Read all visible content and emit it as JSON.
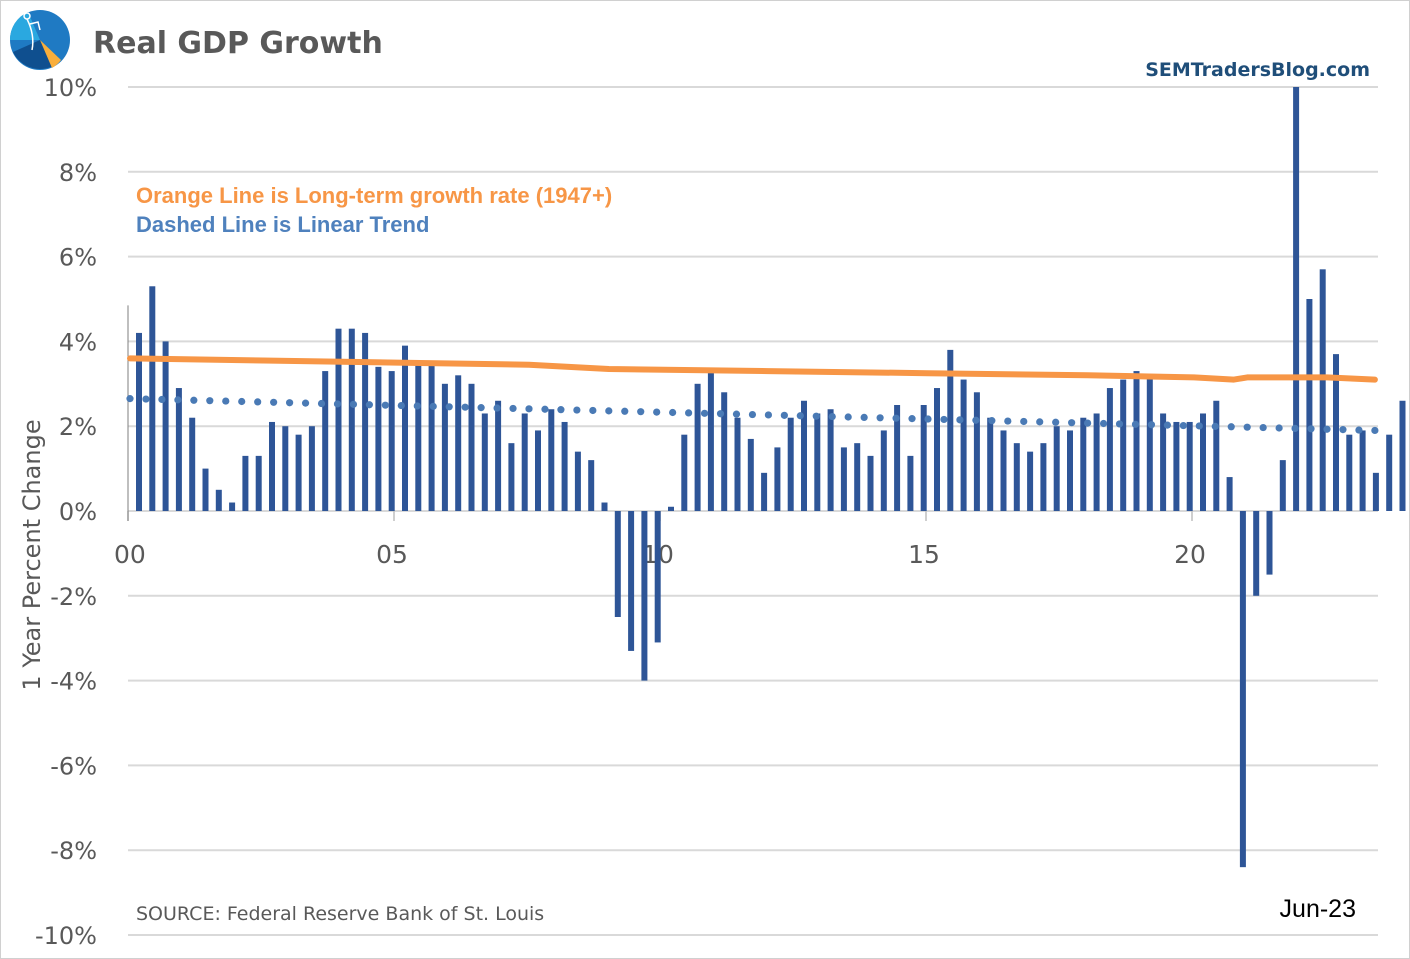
{
  "header": {
    "title": "Real GDP Growth",
    "brand": "SEMTradersBlog.com",
    "logo_icon": "compass-pie-logo-icon"
  },
  "annotations": {
    "orange_note": "Orange Line is Long-term growth rate (1947+)",
    "blue_note": "Dashed Line is Linear Trend",
    "source": "SOURCE:  Federal Reserve Bank of St. Louis",
    "date": "Jun-23"
  },
  "colors": {
    "bar": "#2e5597",
    "long_term_line": "#f79646",
    "trend_dots": "#4a7ab5",
    "grid": "#d9d9d9",
    "title": "#595959",
    "brand": "#1f4e79"
  },
  "chart_data": {
    "type": "bar",
    "title": "Real GDP Growth",
    "xlabel": "",
    "ylabel": "1 Year Percent Change",
    "ylim": [
      -10,
      10
    ],
    "yticks": [
      10,
      8,
      6,
      4,
      2,
      0,
      -2,
      -4,
      -6,
      -8,
      -10
    ],
    "ytick_labels": [
      "10%",
      "8%",
      "6%",
      "4%",
      "2%",
      "0%",
      "-2%",
      "-4%",
      "-6%",
      "-8%",
      "-10%"
    ],
    "xtick_labels": [
      "00",
      "05",
      "10",
      "15",
      "20"
    ],
    "xtick_years": [
      2000,
      2005,
      2010,
      2015,
      2020
    ],
    "grid": true,
    "x_start": "2000-Q1",
    "x_end": "2023-Q2",
    "frequency": "quarterly",
    "series": [
      {
        "name": "Real GDP YoY % change",
        "type": "bar",
        "values": [
          4.2,
          5.3,
          4.0,
          2.9,
          2.2,
          1.0,
          0.5,
          0.2,
          1.3,
          1.3,
          2.1,
          2.0,
          1.8,
          2.0,
          3.3,
          4.3,
          4.3,
          4.2,
          3.4,
          3.3,
          3.9,
          3.5,
          3.5,
          3.0,
          3.2,
          3.0,
          2.3,
          2.6,
          1.6,
          2.3,
          1.9,
          2.4,
          2.1,
          1.4,
          1.2,
          0.2,
          -2.5,
          -3.3,
          -4.0,
          -3.1,
          0.1,
          1.8,
          3.0,
          3.3,
          2.8,
          2.2,
          1.7,
          0.9,
          1.5,
          2.2,
          2.6,
          2.3,
          2.4,
          1.5,
          1.6,
          1.3,
          1.9,
          2.5,
          1.3,
          2.5,
          2.9,
          3.8,
          3.1,
          2.8,
          2.2,
          1.9,
          1.6,
          1.4,
          1.6,
          2.0,
          1.9,
          2.2,
          2.3,
          2.9,
          3.1,
          3.3,
          3.2,
          2.3,
          2.1,
          2.1,
          2.3,
          2.6,
          0.8,
          -8.4,
          -2.0,
          -1.5,
          1.2,
          12.0,
          5.0,
          5.7,
          3.7,
          1.8,
          1.9,
          0.9,
          1.8,
          2.6
        ]
      },
      {
        "name": "Long-term growth rate (1947+)",
        "type": "line",
        "points": [
          [
            2000.0,
            3.6
          ],
          [
            2002.5,
            3.55
          ],
          [
            2005.0,
            3.5
          ],
          [
            2007.5,
            3.45
          ],
          [
            2009.0,
            3.35
          ],
          [
            2012.0,
            3.3
          ],
          [
            2015.0,
            3.25
          ],
          [
            2018.0,
            3.2
          ],
          [
            2020.0,
            3.15
          ],
          [
            2020.75,
            3.1
          ],
          [
            2021.0,
            3.15
          ],
          [
            2022.5,
            3.15
          ],
          [
            2023.4,
            3.1
          ]
        ]
      },
      {
        "name": "Linear Trend",
        "type": "dotted-line",
        "start": [
          2000.0,
          2.65
        ],
        "end": [
          2023.4,
          1.9
        ]
      }
    ],
    "legend": "none",
    "annotations": [
      "Orange Line is Long-term growth rate (1947+)",
      "Dashed Line is Linear Trend"
    ]
  }
}
